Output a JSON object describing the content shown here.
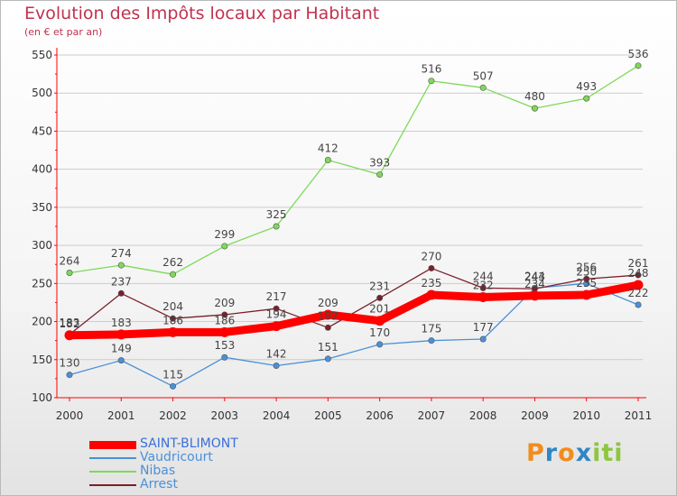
{
  "title": "Evolution des Impôts locaux par Habitant",
  "subtitle": "(en € et par an)",
  "colors": {
    "title": "#c0334f",
    "axis": "#ff0000",
    "grid": "#cccccc"
  },
  "logo": {
    "letters": [
      "P",
      "r",
      "o",
      "x",
      "i",
      "t",
      "i"
    ],
    "colors": [
      "#f28c1b",
      "#2f86c6",
      "#f28c1b",
      "#2f86c6",
      "#8dc63f",
      "#8dc63f",
      "#8dc63f"
    ]
  },
  "chart_data": {
    "type": "line",
    "x": [
      "2000",
      "2001",
      "2002",
      "2003",
      "2004",
      "2005",
      "2006",
      "2007",
      "2008",
      "2009",
      "2010",
      "2011"
    ],
    "ylim": [
      100,
      550
    ],
    "yticks": [
      100,
      150,
      200,
      250,
      300,
      350,
      400,
      450,
      500,
      550
    ],
    "grid": true,
    "legend_position": "bottom-left",
    "series": [
      {
        "name": "SAINT-BLIMONT",
        "color": "#ff0000",
        "values": [
          182,
          183,
          186,
          186,
          194,
          209,
          201,
          235,
          232,
          234,
          235,
          248
        ],
        "labels": [
          "182",
          "183",
          "186",
          "186",
          "194",
          "209",
          "201",
          "235",
          "232",
          "234",
          "235",
          "248"
        ]
      },
      {
        "name": "Vaudricourt",
        "color": "#4a90d9",
        "values": [
          130,
          149,
          115,
          153,
          142,
          151,
          170,
          175,
          177,
          244,
          250,
          222
        ],
        "labels": [
          "130",
          "149",
          "115",
          "153",
          "142",
          "151",
          "170",
          "175",
          "177",
          "244",
          "250",
          "222"
        ]
      },
      {
        "name": "Nibas",
        "color": "#7ed957",
        "values": [
          264,
          274,
          262,
          299,
          325,
          412,
          393,
          516,
          507,
          480,
          493,
          536
        ],
        "labels": [
          "264",
          "274",
          "262",
          "299",
          "325",
          "412",
          "393",
          "516",
          "507",
          "480",
          "493",
          "536"
        ]
      },
      {
        "name": "Arrest",
        "color": "#7a1f2b",
        "values": [
          183,
          237,
          204,
          209,
          217,
          192,
          231,
          270,
          244,
          243,
          256,
          261
        ],
        "labels": [
          "183",
          "237",
          "204",
          "209",
          "217",
          "192",
          "231",
          "270",
          "244",
          "243",
          "256",
          "261"
        ]
      }
    ]
  }
}
